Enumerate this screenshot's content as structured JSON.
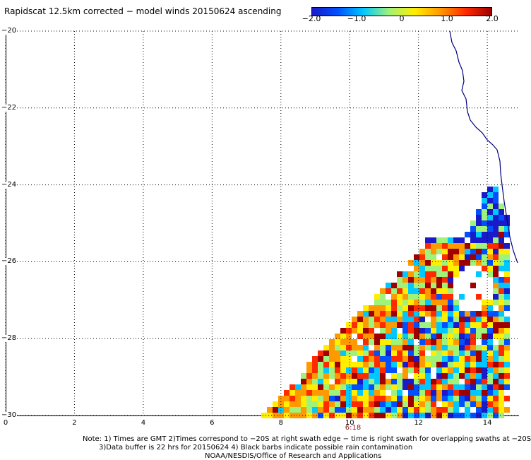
{
  "title": "Rapidscat 12.5km corrected − model winds 20150624 ascending",
  "colorbar": {
    "ticks": [
      "−2.0",
      "−1.0",
      "0",
      "1.0",
      "2.0"
    ],
    "tick_values": [
      -2.0,
      -1.0,
      0,
      1.0,
      2.0
    ],
    "range": [
      -2.0,
      2.0
    ],
    "colors": [
      "#1a1ac8",
      "#0050ff",
      "#00c8ff",
      "#9ff27a",
      "#ffee00",
      "#ff9900",
      "#ff2a00",
      "#a00000"
    ]
  },
  "axes": {
    "x_ticks": [
      "0",
      "2",
      "4",
      "6",
      "8",
      "10",
      "12",
      "14"
    ],
    "x_values": [
      0,
      2,
      4,
      6,
      8,
      10,
      12,
      14
    ],
    "y_ticks": [
      "−20",
      "−22",
      "−24",
      "−26",
      "−28",
      "−30"
    ],
    "y_values": [
      -20,
      -22,
      -24,
      -26,
      -28,
      -30
    ],
    "xlim": [
      0,
      14.9
    ],
    "ylim": [
      -30,
      -20
    ],
    "grid": true,
    "grid_style": "dotted"
  },
  "time_label": "6:18",
  "notes": [
    "Note: 1) Times are GMT 2)Times correspond to −20S at right swath edge − time is right swath for overlapping swaths at −20S",
    "3)Data buffer is 22 hrs for 20150624 4) Black barbs indicate possible rain contamination",
    "NOAA/NESDIS/Office of Research and Applications"
  ],
  "coastline_color": "#000080",
  "swath_color_scale": [
    "#1a1ac8",
    "#0050ff",
    "#00c8ff",
    "#9ff27a",
    "#ffee00",
    "#ff9900",
    "#ff2a00",
    "#a00000"
  ]
}
